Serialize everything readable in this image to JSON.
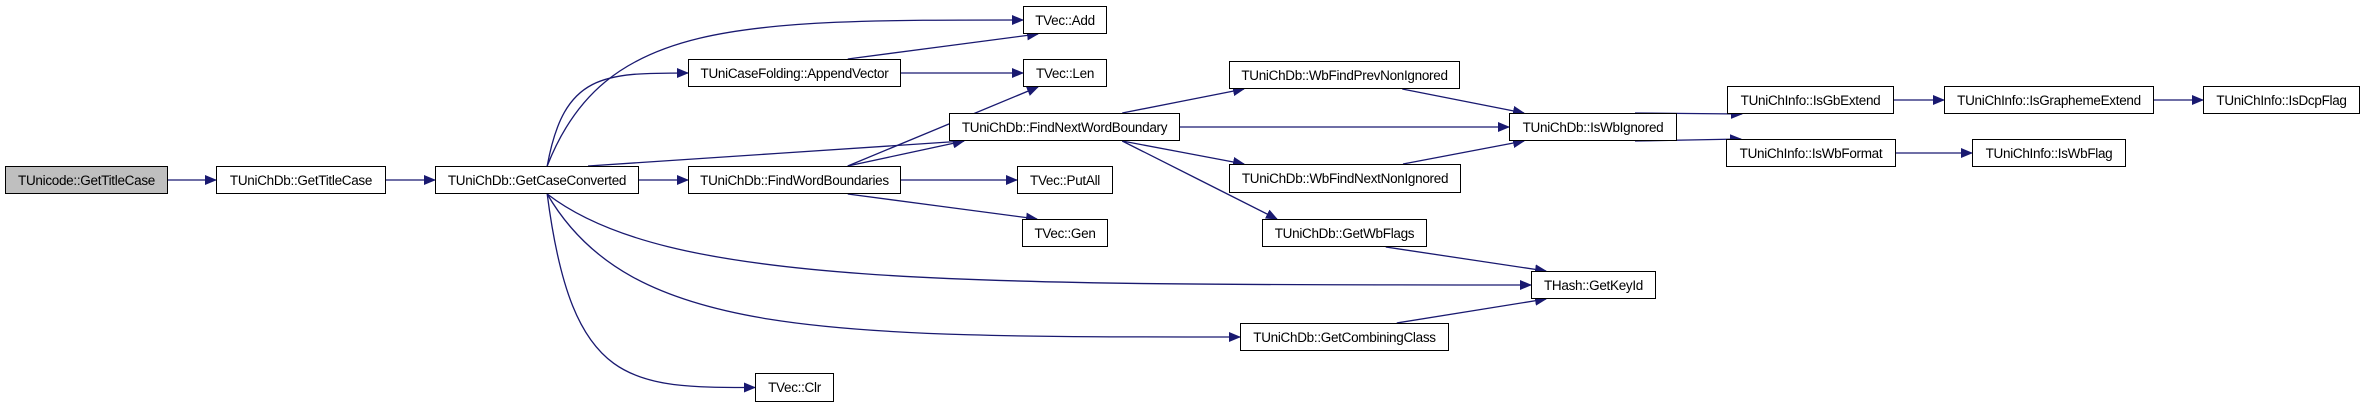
{
  "graph": {
    "edge_color": "#191970",
    "root_fill": "#bfbfbf",
    "nodes": {
      "root": "TUnicode::GetTitleCase",
      "db_gettitlecase": "TUniChDb::GetTitleCase",
      "getcaseconverted": "TUniChDb::GetCaseConverted",
      "appendvector": "TUniCaseFolding::AppendVector",
      "findwordboundaries": "TUniChDb::FindWordBoundaries",
      "clr": "TVec::Clr",
      "add": "TVec::Add",
      "len": "TVec::Len",
      "findnextwordboundary": "TUniChDb::FindNextWordBoundary",
      "putall": "TVec::PutAll",
      "gen": "TVec::Gen",
      "wbfindprev": "TUniChDb::WbFindPrevNonIgnored",
      "wbfindnext": "TUniChDb::WbFindNextNonIgnored",
      "getwbflags": "TUniChDb::GetWbFlags",
      "getkeyid": "THash::GetKeyId",
      "getcombiningclass": "TUniChDb::GetCombiningClass",
      "iswbignored": "TUniChDb::IsWbIgnored",
      "isgbextend": "TUniChInfo::IsGbExtend",
      "isgraphemeextend": "TUniChInfo::IsGraphemeExtend",
      "isdcpflag": "TUniChInfo::IsDcpFlag",
      "iswbformat": "TUniChInfo::IsWbFormat",
      "iswbflag": "TUniChInfo::IsWbFlag"
    },
    "edges": [
      [
        "root",
        "db_gettitlecase"
      ],
      [
        "db_gettitlecase",
        "getcaseconverted"
      ],
      [
        "getcaseconverted",
        "add"
      ],
      [
        "getcaseconverted",
        "appendvector"
      ],
      [
        "getcaseconverted",
        "findnextwordboundary"
      ],
      [
        "getcaseconverted",
        "findwordboundaries"
      ],
      [
        "getcaseconverted",
        "getkeyid"
      ],
      [
        "getcaseconverted",
        "getcombiningclass"
      ],
      [
        "getcaseconverted",
        "clr"
      ],
      [
        "appendvector",
        "add"
      ],
      [
        "appendvector",
        "len"
      ],
      [
        "findwordboundaries",
        "len"
      ],
      [
        "findwordboundaries",
        "findnextwordboundary"
      ],
      [
        "findwordboundaries",
        "putall"
      ],
      [
        "findwordboundaries",
        "gen"
      ],
      [
        "findnextwordboundary",
        "wbfindprev"
      ],
      [
        "findnextwordboundary",
        "iswbignored"
      ],
      [
        "findnextwordboundary",
        "wbfindnext"
      ],
      [
        "findnextwordboundary",
        "getwbflags"
      ],
      [
        "wbfindprev",
        "iswbignored"
      ],
      [
        "wbfindnext",
        "iswbignored"
      ],
      [
        "getwbflags",
        "getkeyid"
      ],
      [
        "getcombiningclass",
        "getkeyid"
      ],
      [
        "iswbignored",
        "isgbextend"
      ],
      [
        "iswbignored",
        "iswbformat"
      ],
      [
        "isgbextend",
        "isgraphemeextend"
      ],
      [
        "isgraphemeextend",
        "isdcpflag"
      ],
      [
        "iswbformat",
        "iswbflag"
      ]
    ]
  }
}
